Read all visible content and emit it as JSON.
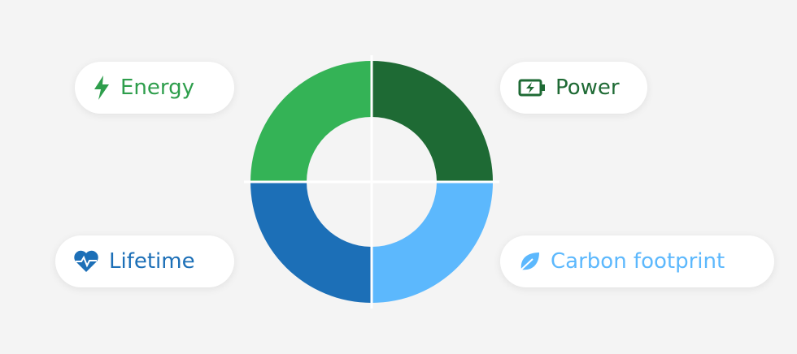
{
  "nodes": [
    {
      "label": "Energy"
    },
    {
      "label": "Power"
    },
    {
      "label": "Lifetime"
    },
    {
      "label": "Carbon footprint"
    }
  ]
}
